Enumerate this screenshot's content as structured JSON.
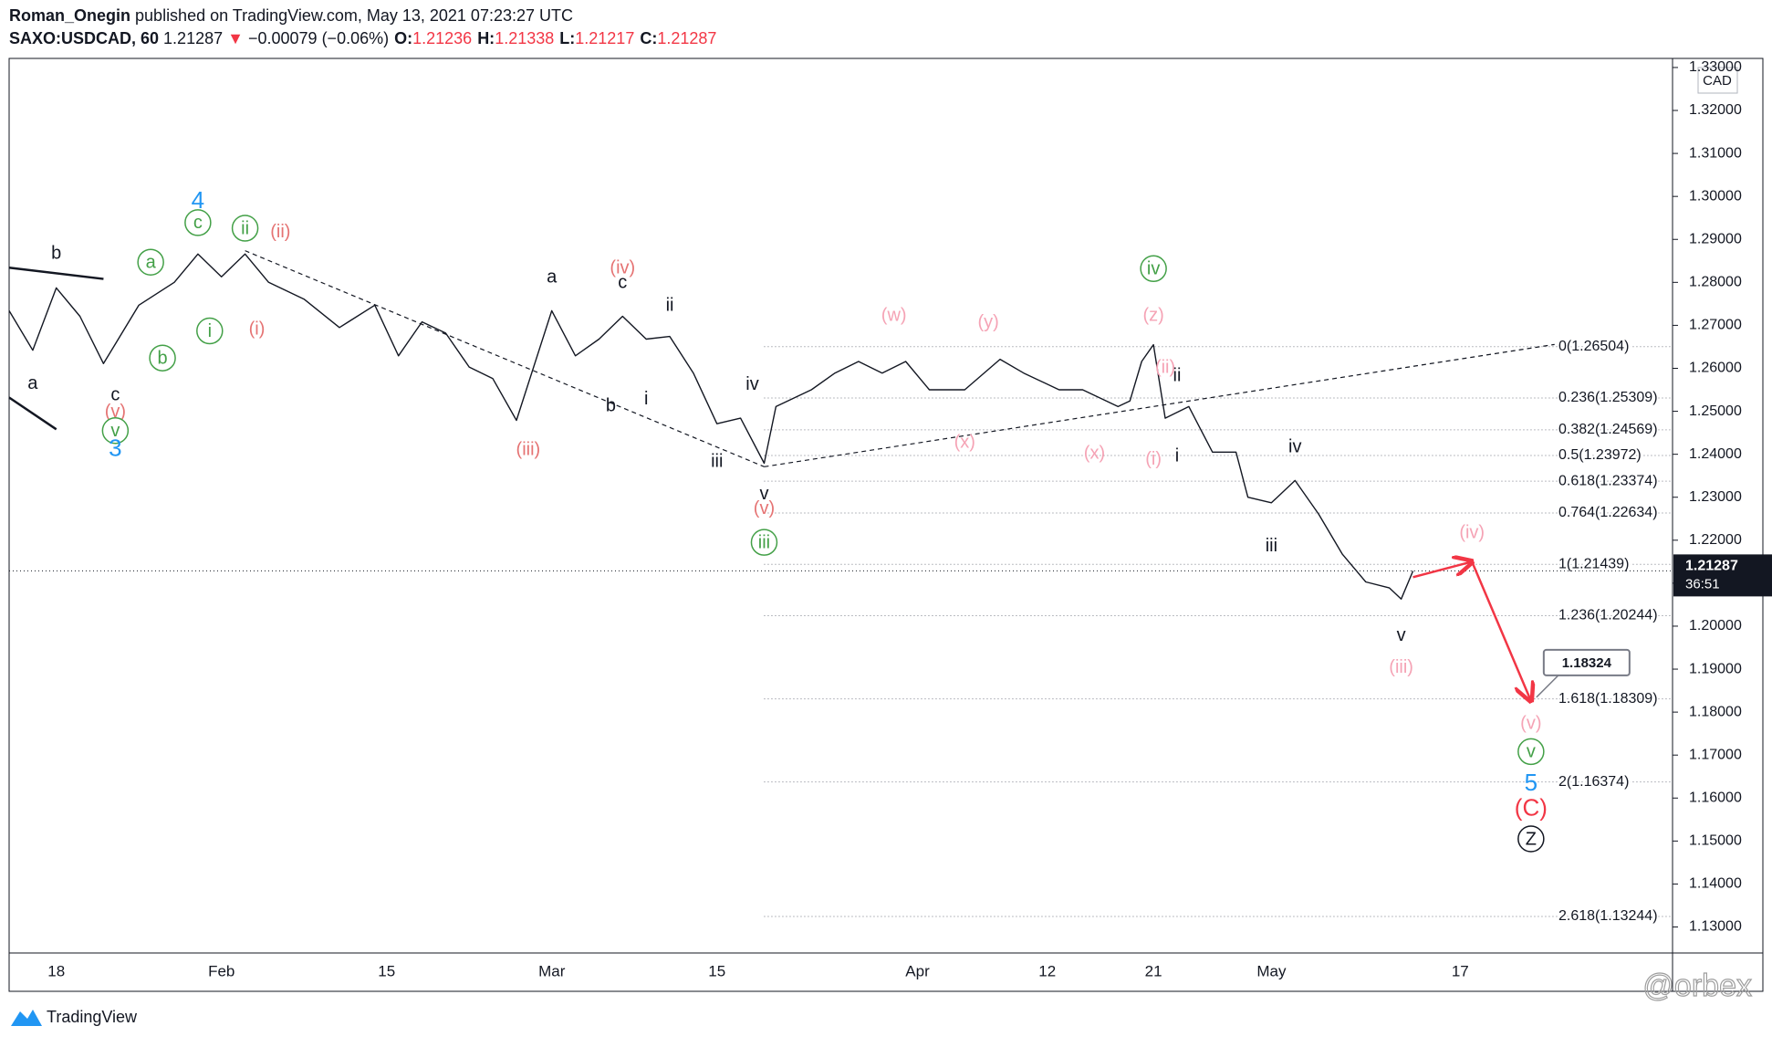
{
  "header": {
    "author": "Roman_Onegin",
    "published": "published on TradingView.com, May 13, 2021 07:23:27 UTC",
    "symbol": "SAXO:USDCAD, 60",
    "last": "1.21287",
    "arrow": "▼",
    "change": "−0.00079 (−0.06%)",
    "ohlc": [
      {
        "label": "O:",
        "value": "1.21236"
      },
      {
        "label": "H:",
        "value": "1.21338"
      },
      {
        "label": "L:",
        "value": "1.21217"
      },
      {
        "label": "C:",
        "value": "1.21287"
      }
    ]
  },
  "chart_data": {
    "type": "line",
    "currency": "CAD",
    "color": "#131722",
    "x": [
      "2021-01-14",
      "2021-01-16",
      "2021-01-18",
      "2021-01-20",
      "2021-01-22",
      "2021-01-25",
      "2021-01-28",
      "2021-01-30",
      "2021-02-01",
      "2021-02-03",
      "2021-02-05",
      "2021-02-08",
      "2021-02-11",
      "2021-02-14",
      "2021-02-16",
      "2021-02-18",
      "2021-02-20",
      "2021-02-22",
      "2021-02-24",
      "2021-02-26",
      "2021-03-01",
      "2021-03-03",
      "2021-03-05",
      "2021-03-07",
      "2021-03-09",
      "2021-03-11",
      "2021-03-13",
      "2021-03-15",
      "2021-03-17",
      "2021-03-19",
      "2021-03-20",
      "2021-03-23",
      "2021-03-25",
      "2021-03-27",
      "2021-03-29",
      "2021-03-31",
      "2021-04-02",
      "2021-04-05",
      "2021-04-08",
      "2021-04-10",
      "2021-04-13",
      "2021-04-15",
      "2021-04-18",
      "2021-04-19",
      "2021-04-20",
      "2021-04-21",
      "2021-04-22",
      "2021-04-24",
      "2021-04-25",
      "2021-04-26",
      "2021-04-28",
      "2021-04-29",
      "2021-05-01",
      "2021-05-03",
      "2021-05-05",
      "2021-05-07",
      "2021-05-09",
      "2021-05-11",
      "2021-05-12",
      "2021-05-13"
    ],
    "values": [
      1.2734,
      1.2642,
      1.2787,
      1.2721,
      1.2611,
      1.2747,
      1.28,
      1.2866,
      1.2813,
      1.2866,
      1.28,
      1.2761,
      1.2695,
      1.2747,
      1.2629,
      1.2708,
      1.2682,
      1.2603,
      1.2576,
      1.2479,
      1.2734,
      1.2629,
      1.2668,
      1.2721,
      1.2668,
      1.2674,
      1.2589,
      1.2471,
      1.2484,
      1.2379,
      1.2511,
      1.255,
      1.2589,
      1.2616,
      1.2589,
      1.2616,
      1.255,
      1.255,
      1.2621,
      1.2589,
      1.255,
      1.255,
      1.2511,
      1.2524,
      1.2616,
      1.2655,
      1.2484,
      1.2511,
      1.2458,
      1.2405,
      1.2405,
      1.23,
      1.2287,
      1.2339,
      1.2261,
      1.2168,
      1.2103,
      1.2089,
      1.2063,
      1.21287
    ],
    "xlim": [
      "2021-01-14",
      "2021-06-04"
    ],
    "xticks": [
      {
        "value": "2021-01-18",
        "label": "18"
      },
      {
        "value": "2021-02-01",
        "label": "Feb"
      },
      {
        "value": "2021-02-15",
        "label": "15"
      },
      {
        "value": "2021-03-01",
        "label": "Mar"
      },
      {
        "value": "2021-03-15",
        "label": "15"
      },
      {
        "value": "2021-04-01",
        "label": "Apr"
      },
      {
        "value": "2021-04-12",
        "label": "12"
      },
      {
        "value": "2021-04-21",
        "label": "21"
      },
      {
        "value": "2021-05-01",
        "label": "May"
      },
      {
        "value": "2021-05-17",
        "label": "17"
      }
    ],
    "ylim": [
      1.12395,
      1.33211
    ],
    "yticks": [
      {
        "value": 1.13,
        "label": "1.13000"
      },
      {
        "value": 1.14,
        "label": "1.14000"
      },
      {
        "value": 1.15,
        "label": "1.15000"
      },
      {
        "value": 1.16,
        "label": "1.16000"
      },
      {
        "value": 1.17,
        "label": "1.17000"
      },
      {
        "value": 1.18,
        "label": "1.18000"
      },
      {
        "value": 1.19,
        "label": "1.19000"
      },
      {
        "value": 1.2,
        "label": "1.20000"
      },
      {
        "value": 1.21,
        "label": "1.21000"
      },
      {
        "value": 1.22,
        "label": "1.22000"
      },
      {
        "value": 1.23,
        "label": "1.23000"
      },
      {
        "value": 1.24,
        "label": "1.24000"
      },
      {
        "value": 1.25,
        "label": "1.25000"
      },
      {
        "value": 1.26,
        "label": "1.26000"
      },
      {
        "value": 1.27,
        "label": "1.27000"
      },
      {
        "value": 1.28,
        "label": "1.28000"
      },
      {
        "value": 1.29,
        "label": "1.29000"
      },
      {
        "value": 1.3,
        "label": "1.30000"
      },
      {
        "value": 1.31,
        "label": "1.31000"
      },
      {
        "value": 1.32,
        "label": "1.32000"
      },
      {
        "value": 1.33,
        "label": "1.33000"
      }
    ],
    "last_price": {
      "value": 1.21287,
      "label": "1.21287",
      "countdown": "36:51"
    },
    "fib": {
      "start": "2021-03-19",
      "levels": [
        {
          "value": 1.26504,
          "label": "0(1.26504)"
        },
        {
          "value": 1.25309,
          "label": "0.236(1.25309)"
        },
        {
          "value": 1.24569,
          "label": "0.382(1.24569)"
        },
        {
          "value": 1.23972,
          "label": "0.5(1.23972)"
        },
        {
          "value": 1.23374,
          "label": "0.618(1.23374)"
        },
        {
          "value": 1.22634,
          "label": "0.764(1.22634)"
        },
        {
          "value": 1.21439,
          "label": "1(1.21439)"
        },
        {
          "value": 1.20244,
          "label": "1.236(1.20244)"
        },
        {
          "value": 1.18309,
          "label": "1.618(1.18309)"
        },
        {
          "value": 1.16374,
          "label": "2(1.16374)"
        },
        {
          "value": 1.13244,
          "label": "2.618(1.13244)"
        }
      ]
    },
    "trendlines": [
      {
        "style": "dashed",
        "color": "#131722",
        "points": [
          [
            "2021-02-03",
            1.28737
          ],
          [
            "2021-03-19",
            1.2371
          ]
        ]
      },
      {
        "style": "dashed",
        "color": "#131722",
        "points": [
          [
            "2021-03-19",
            1.2371
          ],
          [
            "2021-05-25",
            1.26555
          ]
        ]
      },
      {
        "style": "solid",
        "color": "#131722",
        "points": [
          [
            "2021-01-14",
            1.28342
          ],
          [
            "2021-01-22",
            1.2808
          ]
        ]
      },
      {
        "style": "solid",
        "color": "#131722",
        "points": [
          [
            "2021-01-14",
            1.2532
          ],
          [
            "2021-01-18",
            1.2458
          ]
        ]
      }
    ],
    "projection": {
      "color": "#f23645",
      "points": [
        [
          "2021-05-13",
          1.2114
        ],
        [
          "2021-05-18",
          1.215
        ],
        [
          "2021-05-23",
          1.1826
        ]
      ],
      "label": {
        "value": 1.18324,
        "label": "1.18324"
      }
    },
    "annotations": [
      {
        "text": "b",
        "x": "2021-01-18",
        "y": 1.2868,
        "color": "#131722"
      },
      {
        "text": "a",
        "x": "2021-01-16",
        "y": 1.2566,
        "color": "#131722"
      },
      {
        "text": "c",
        "x": "2021-01-23",
        "y": 1.2539,
        "color": "#131722"
      },
      {
        "text": "(v)",
        "x": "2021-01-23",
        "y": 1.25,
        "color": "#e57373"
      },
      {
        "text": "v",
        "x": "2021-01-23",
        "y": 1.2455,
        "color": "#43a047",
        "circled": true
      },
      {
        "text": "3",
        "x": "2021-01-23",
        "y": 1.2413,
        "color": "#2196f3"
      },
      {
        "text": "4",
        "x": "2021-01-30",
        "y": 1.2989,
        "color": "#2196f3"
      },
      {
        "text": "c",
        "x": "2021-01-30",
        "y": 1.2939,
        "color": "#43a047",
        "circled": true
      },
      {
        "text": "ii",
        "x": "2021-02-03",
        "y": 1.2926,
        "color": "#43a047",
        "circled": true
      },
      {
        "text": "(ii)",
        "x": "2021-02-06",
        "y": 1.2918,
        "color": "#e57373"
      },
      {
        "text": "a",
        "x": "2021-01-26",
        "y": 1.2847,
        "color": "#43a047",
        "circled": true
      },
      {
        "text": "b",
        "x": "2021-01-27",
        "y": 1.2624,
        "color": "#43a047",
        "circled": true
      },
      {
        "text": "i",
        "x": "2021-01-31",
        "y": 1.2687,
        "color": "#43a047",
        "circled": true
      },
      {
        "text": "(i)",
        "x": "2021-02-04",
        "y": 1.2692,
        "color": "#e57373"
      },
      {
        "text": "a",
        "x": "2021-03-01",
        "y": 1.2813,
        "color": "#131722"
      },
      {
        "text": "(iv)",
        "x": "2021-03-07",
        "y": 1.2834,
        "color": "#e57373"
      },
      {
        "text": "c",
        "x": "2021-03-07",
        "y": 1.28,
        "color": "#131722"
      },
      {
        "text": "ii",
        "x": "2021-03-11",
        "y": 1.2747,
        "color": "#131722"
      },
      {
        "text": "b",
        "x": "2021-03-06",
        "y": 1.2513,
        "color": "#131722"
      },
      {
        "text": "i",
        "x": "2021-03-09",
        "y": 1.2529,
        "color": "#131722"
      },
      {
        "text": "(iii)",
        "x": "2021-02-27",
        "y": 1.2411,
        "color": "#e57373"
      },
      {
        "text": "iv",
        "x": "2021-03-18",
        "y": 1.2563,
        "color": "#131722"
      },
      {
        "text": "iii",
        "x": "2021-03-15",
        "y": 1.2384,
        "color": "#131722"
      },
      {
        "text": "v",
        "x": "2021-03-19",
        "y": 1.2308,
        "color": "#131722"
      },
      {
        "text": "(v)",
        "x": "2021-03-19",
        "y": 1.2274,
        "color": "#e57373"
      },
      {
        "text": "iii",
        "x": "2021-03-19",
        "y": 1.2195,
        "color": "#43a047",
        "circled": true
      },
      {
        "text": "(w)",
        "x": "2021-03-30",
        "y": 1.2724,
        "color": "#f5a3b5"
      },
      {
        "text": "(y)",
        "x": "2021-04-07",
        "y": 1.2708,
        "color": "#f5a3b5"
      },
      {
        "text": "(x)",
        "x": "2021-04-05",
        "y": 1.2429,
        "color": "#f5a3b5"
      },
      {
        "text": "(x)",
        "x": "2021-04-16",
        "y": 1.2403,
        "color": "#f5a3b5"
      },
      {
        "text": "iv",
        "x": "2021-04-21",
        "y": 1.2832,
        "color": "#43a047",
        "circled": true
      },
      {
        "text": "(z)",
        "x": "2021-04-21",
        "y": 1.2724,
        "color": "#f5a3b5"
      },
      {
        "text": "(ii)",
        "x": "2021-04-22",
        "y": 1.2603,
        "color": "#f5a3b5"
      },
      {
        "text": "ii",
        "x": "2021-04-23",
        "y": 1.2584,
        "color": "#131722"
      },
      {
        "text": "i",
        "x": "2021-04-23",
        "y": 1.2397,
        "color": "#131722"
      },
      {
        "text": "(i)",
        "x": "2021-04-21",
        "y": 1.2389,
        "color": "#f5a3b5"
      },
      {
        "text": "iv",
        "x": "2021-05-03",
        "y": 1.2418,
        "color": "#131722"
      },
      {
        "text": "iii",
        "x": "2021-05-01",
        "y": 1.2187,
        "color": "#131722"
      },
      {
        "text": "v",
        "x": "2021-05-12",
        "y": 1.1979,
        "color": "#131722"
      },
      {
        "text": "(iii)",
        "x": "2021-05-12",
        "y": 1.1905,
        "color": "#f5a3b5"
      },
      {
        "text": "(iv)",
        "x": "2021-05-18",
        "y": 1.2218,
        "color": "#f5a3b5"
      },
      {
        "text": "(v)",
        "x": "2021-05-23",
        "y": 1.1774,
        "color": "#f5a3b5"
      },
      {
        "text": "v",
        "x": "2021-05-23",
        "y": 1.1708,
        "color": "#43a047",
        "circled": true
      },
      {
        "text": "5",
        "x": "2021-05-23",
        "y": 1.1634,
        "color": "#2196f3"
      },
      {
        "text": "(C)",
        "x": "2021-05-23",
        "y": 1.1576,
        "color": "#f23645"
      },
      {
        "text": "Z",
        "x": "2021-05-23",
        "y": 1.1505,
        "color": "#131722",
        "circled": true
      }
    ]
  },
  "footer": {
    "brand": "TradingView",
    "watermark": "@orbex"
  }
}
